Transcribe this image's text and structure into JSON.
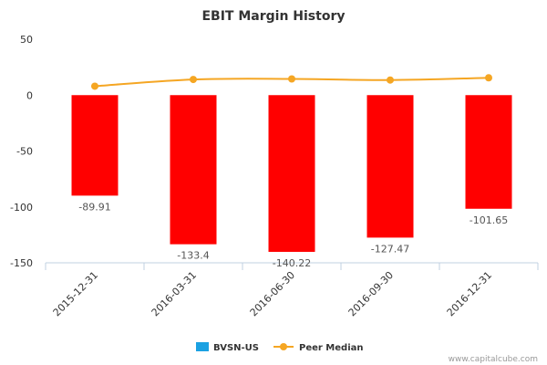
{
  "chart_data": {
    "type": "bar",
    "title": "EBIT Margin History",
    "categories": [
      "2015-12-31",
      "2016-03-31",
      "2016-06-30",
      "2016-09-30",
      "2016-12-31"
    ],
    "ylim": [
      -150,
      50
    ],
    "yticks": [
      50,
      0,
      -50,
      -100,
      -150
    ],
    "series": [
      {
        "name": "BVSN-US",
        "type": "bar",
        "values": [
          -89.91,
          -133.4,
          -140.22,
          -127.47,
          -101.65
        ],
        "data_labels": [
          "-89.91",
          "-133.4",
          "-140.22",
          "-127.47",
          "-101.65"
        ],
        "legend_color": "#1ba1e2",
        "bar_color": "#ff0000"
      },
      {
        "name": "Peer Median",
        "type": "line",
        "values": [
          8,
          14,
          14.5,
          13.5,
          15.5
        ],
        "color": "#f5a623"
      }
    ],
    "legend_position": "bottom-center",
    "grid": false
  },
  "watermark": "www.capitalcube.com"
}
